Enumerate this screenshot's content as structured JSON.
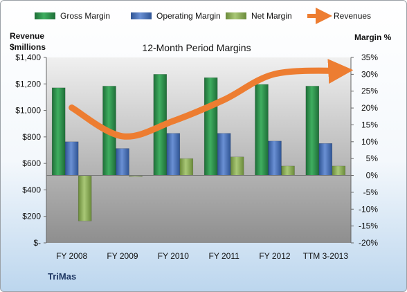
{
  "chart_data": {
    "type": "bar",
    "title": "12-Month Period Margins",
    "company": "TriMas",
    "categories": [
      "FY 2008",
      "FY 2009",
      "FY 2010",
      "FY 2011",
      "FY 2012",
      "TTM 3-2013"
    ],
    "y_left": {
      "label_line1": "Revenue",
      "label_line2": "$millions",
      "min": 0,
      "max": 1400,
      "step": 200,
      "ticks": [
        "$-",
        "$200",
        "$400",
        "$600",
        "$800",
        "$1,000",
        "$1,200",
        "$1,400"
      ]
    },
    "y_right": {
      "label": "Margin %",
      "min": -20,
      "max": 35,
      "step": 5,
      "ticks": [
        "-20%",
        "-15%",
        "-10%",
        "-5%",
        "0%",
        "5%",
        "10%",
        "15%",
        "20%",
        "25%",
        "30%",
        "35%"
      ]
    },
    "series": [
      {
        "name": "Gross Margin",
        "axis": "right",
        "color": "#2e8b4a",
        "values": [
          26.0,
          26.5,
          30.0,
          29.0,
          27.0,
          26.5
        ]
      },
      {
        "name": "Operating Margin",
        "axis": "right",
        "color": "#4a72b8",
        "values": [
          10.0,
          8.0,
          12.5,
          12.5,
          10.2,
          9.5
        ]
      },
      {
        "name": "Net Margin",
        "axis": "right",
        "color": "#8fb35a",
        "values": [
          -13.5,
          -0.3,
          5.0,
          5.5,
          2.8,
          2.8
        ]
      },
      {
        "name": "Revenues",
        "axis": "left",
        "type": "line",
        "color": "#ed7d31",
        "values": [
          1021,
          805,
          920,
          1080,
          1275,
          1300
        ]
      }
    ],
    "legend_position": "top",
    "grid": false
  }
}
